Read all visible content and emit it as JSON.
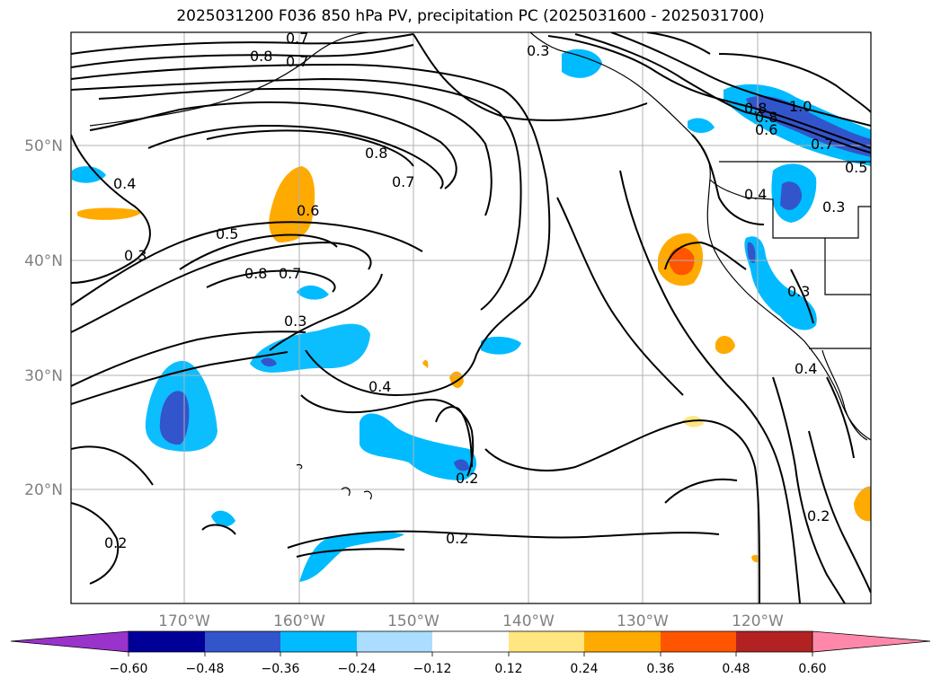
{
  "title": "2025031200 F036 850 hPa PV, precipitation PC (2025031600 - 2025031700)",
  "map": {
    "lon_labels": [
      "170°W",
      "160°W",
      "150°W",
      "140°W",
      "130°W",
      "120°W"
    ],
    "lat_labels": [
      "50°N",
      "40°N",
      "30°N",
      "20°N"
    ]
  },
  "contour_labels": {
    "a": "0.8",
    "b": "0.7",
    "c": "0.4",
    "d": "0.3",
    "e": "0.5",
    "f": "0.6",
    "g": "0.8",
    "h": "0.7",
    "i": "0.8",
    "j": "0.7",
    "k": "0.3",
    "l": "0.4",
    "m": "0.2",
    "n": "0.2",
    "o": "0.2",
    "p": "0.2",
    "q": "1.0",
    "r": "0.8",
    "s": "0.6",
    "t": "0.7",
    "u": "0.5",
    "v": "0.4",
    "w": "0.3",
    "x": "0.3",
    "y": "0.4",
    "z": "0.3",
    "aa": "0.8",
    "ab": "0.7"
  },
  "colorbar": {
    "ticks": [
      "−0.60",
      "−0.48",
      "−0.36",
      "−0.24",
      "−0.12",
      "0.12",
      "0.24",
      "0.36",
      "0.48",
      "0.60"
    ],
    "colors": [
      "#9933cc",
      "#000099",
      "#3355cc",
      "#00bbff",
      "#aaddff",
      "#ffffff",
      "#ffe680",
      "#ffaa00",
      "#ff5500",
      "#b22222",
      "#ff88aa"
    ]
  }
}
